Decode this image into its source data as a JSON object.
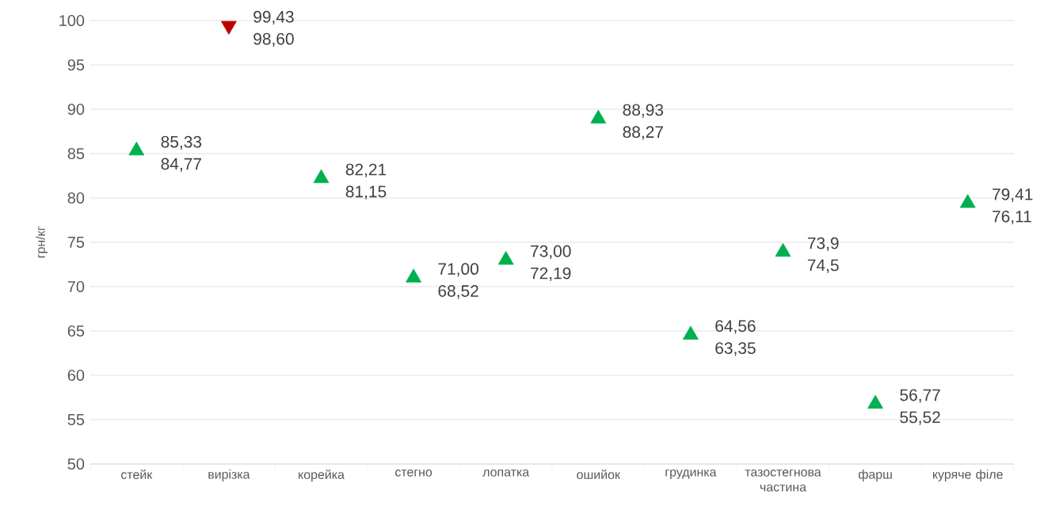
{
  "chart_data": {
    "type": "scatter",
    "ylabel": "грн/кг",
    "categories": [
      "стейк",
      "вирізка",
      "корейка",
      "стегно",
      "лопатка",
      "ошийок",
      "грудинка",
      "тазостегнова частина",
      "фарш",
      "куряче філе"
    ],
    "ylim": [
      50,
      100
    ],
    "yticks": [
      50,
      55,
      60,
      65,
      70,
      75,
      80,
      85,
      90,
      95,
      100
    ],
    "grid": "y",
    "series": [
      {
        "marker": "triangle",
        "color": "#00b050",
        "values": [
          85.33,
          null,
          82.21,
          71.0,
          73.0,
          88.93,
          64.56,
          73.9,
          56.77,
          79.41
        ],
        "value_labels": [
          "85,33",
          null,
          "82,21",
          "71,00",
          "73,00",
          "88,93",
          "64,56",
          "73,9",
          "56,77",
          "79,41"
        ]
      },
      {
        "marker": "triangle-down",
        "color": "#c00000",
        "values": [
          null,
          99.43,
          null,
          null,
          null,
          null,
          null,
          null,
          null,
          null
        ],
        "value_labels": [
          null,
          "99,43",
          null,
          null,
          null,
          null,
          null,
          null,
          null,
          null
        ]
      }
    ],
    "annotations": [
      "84,77",
      "98,60",
      "81,15",
      "68,52",
      "72,19",
      "88,27",
      "63,35",
      "74,5",
      "55,52",
      "76,11"
    ]
  }
}
